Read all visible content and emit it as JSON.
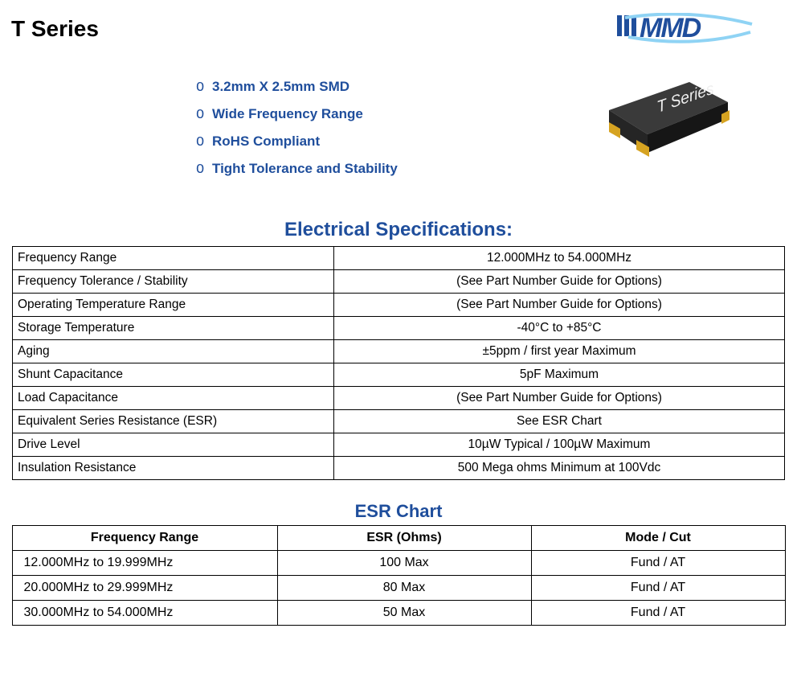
{
  "page_title": "T Series",
  "brand": "MMD",
  "brand_colors": {
    "blue": "#1f4e9c",
    "cyan": "#8fd3f4"
  },
  "features": [
    "3.2mm X 2.5mm SMD",
    "Wide Frequency Range",
    "RoHS Compliant",
    "Tight Tolerance and Stability"
  ],
  "feature_bullet": "O",
  "product_label": "T Series",
  "spec_title": "Electrical Specifications:",
  "specs": [
    {
      "label": "Frequency Range",
      "value": "12.000MHz to 54.000MHz"
    },
    {
      "label": "Frequency Tolerance / Stability",
      "value": "(See Part Number Guide for Options)"
    },
    {
      "label": "Operating Temperature Range",
      "value": "(See Part Number Guide for Options)"
    },
    {
      "label": "Storage Temperature",
      "value": "-40°C to +85°C"
    },
    {
      "label": "Aging",
      "value": "±5ppm / first year Maximum"
    },
    {
      "label": "Shunt Capacitance",
      "value": "5pF Maximum"
    },
    {
      "label": "Load Capacitance",
      "value": "(See Part Number Guide for Options)"
    },
    {
      "label": "Equivalent Series Resistance (ESR)",
      "value": "See ESR Chart"
    },
    {
      "label": "Drive Level",
      "value": "10µW Typical / 100µW Maximum"
    },
    {
      "label": "Insulation Resistance",
      "value": "500 Mega ohms Minimum at 100Vdc"
    }
  ],
  "esr_title": "ESR Chart",
  "esr_columns": [
    "Frequency Range",
    "ESR (Ohms)",
    "Mode / Cut"
  ],
  "esr_rows": [
    [
      "12.000MHz to 19.999MHz",
      "100 Max",
      "Fund / AT"
    ],
    [
      "20.000MHz to 29.999MHz",
      "80 Max",
      "Fund / AT"
    ],
    [
      "30.000MHz to 54.000MHz",
      "50 Max",
      "Fund / AT"
    ]
  ],
  "chip_colors": {
    "body_top": "#3a3a3a",
    "body_side": "#161616",
    "body_front": "#252525",
    "pad": "#d6a321",
    "text": "#efefef"
  }
}
